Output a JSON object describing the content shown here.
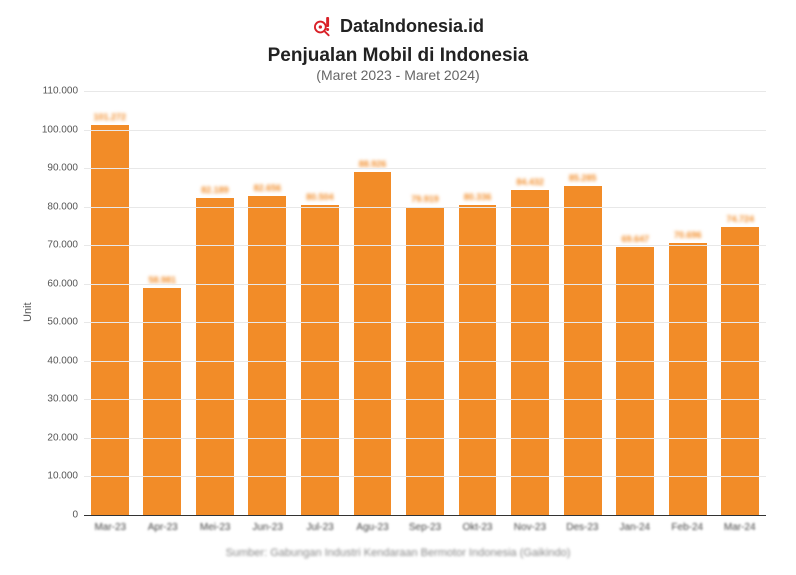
{
  "brand": {
    "name": "DataIndonesia.id",
    "icon_color": "#d92027"
  },
  "title": "Penjualan Mobil di Indonesia",
  "subtitle": "(Maret 2023 - Maret 2024)",
  "ylabel": "Unit",
  "source": "Sumber: Gabungan Industri Kendaraan Bermotor Indonesia (Gaikindo)",
  "chart": {
    "type": "bar",
    "bar_color": "#f28c28",
    "value_label_color": "#f28c28",
    "background_color": "#ffffff",
    "grid_color": "#e8e8e8",
    "axis_color": "#333333",
    "text_color": "#555555",
    "ylim": [
      0,
      110000
    ],
    "ytick_step": 10000,
    "bar_width_ratio": 0.78,
    "categories": [
      "Mar-23",
      "Apr-23",
      "Mei-23",
      "Jun-23",
      "Jul-23",
      "Agu-23",
      "Sep-23",
      "Okt-23",
      "Nov-23",
      "Des-23",
      "Jan-24",
      "Feb-24",
      "Mar-24"
    ],
    "values": [
      101272,
      58981,
      82189,
      82656,
      80504,
      88926,
      79919,
      80336,
      84432,
      85285,
      69647,
      70696,
      74724
    ],
    "value_labels": [
      "101.272",
      "58.981",
      "82.189",
      "82.656",
      "80.504",
      "88.926",
      "79.919",
      "80.336",
      "84.432",
      "85.285",
      "69.647",
      "70.696",
      "74.724"
    ],
    "title_fontsize": 19,
    "subtitle_fontsize": 14,
    "label_fontsize": 11,
    "tick_fontsize": 10,
    "value_fontsize": 9
  }
}
